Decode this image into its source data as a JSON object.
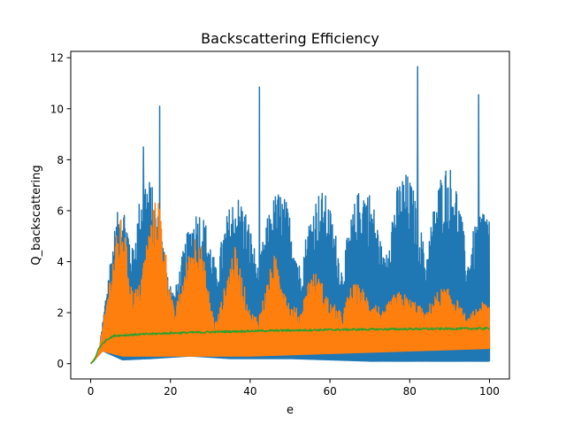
{
  "chart_data": {
    "type": "line",
    "title": "Backscattering Efficiency",
    "xlabel": "e",
    "ylabel": "Q_backscattering",
    "xlim": [
      -5,
      105
    ],
    "ylim": [
      -0.6,
      12.25
    ],
    "xticks": [
      0,
      20,
      40,
      60,
      80,
      100
    ],
    "yticks": [
      0,
      2,
      4,
      6,
      8,
      10,
      12
    ],
    "grid": false,
    "legend": "none",
    "series": [
      {
        "color": "#1f77b4",
        "generator": {
          "x_start": 0,
          "x_end": 100,
          "n": 1400,
          "peak_period": 10.5,
          "envelope": [
            [
              0,
              0
            ],
            [
              2,
              0.4
            ],
            [
              4,
              3.2
            ],
            [
              8,
              7.6
            ],
            [
              13,
              8.5
            ],
            [
              17,
              6.0
            ],
            [
              20,
              4.6
            ],
            [
              27,
              6.2
            ],
            [
              33,
              6.7
            ],
            [
              38,
              6.6
            ],
            [
              45,
              6.8
            ],
            [
              55,
              6.8
            ],
            [
              65,
              6.8
            ],
            [
              73,
              7.4
            ],
            [
              85,
              7.6
            ],
            [
              92,
              8.0
            ],
            [
              100,
              6.0
            ]
          ],
          "base": [
            [
              0,
              0
            ],
            [
              3,
              0.5
            ],
            [
              8,
              0.15
            ],
            [
              15,
              0.2
            ],
            [
              25,
              0.3
            ],
            [
              35,
              0.2
            ],
            [
              50,
              0.2
            ],
            [
              70,
              0.1
            ],
            [
              100,
              0.1
            ]
          ],
          "spikes": [
            {
              "x": 13.2,
              "y": 8.5
            },
            {
              "x": 17.3,
              "y": 10.1
            },
            {
              "x": 42.3,
              "y": 10.85
            },
            {
              "x": 82.0,
              "y": 11.65
            },
            {
              "x": 97.3,
              "y": 10.55
            }
          ]
        }
      },
      {
        "color": "#ff7f0e",
        "generator": {
          "x_start": 0,
          "x_end": 100,
          "n": 1400,
          "peak_period": 10.5,
          "envelope": [
            [
              0,
              0
            ],
            [
              2,
              0.5
            ],
            [
              4,
              2.6
            ],
            [
              8,
              6.8
            ],
            [
              12,
              3.9
            ],
            [
              17,
              6.9
            ],
            [
              21,
              3.4
            ],
            [
              27,
              5.4
            ],
            [
              31,
              2.6
            ],
            [
              36,
              4.7
            ],
            [
              40,
              2.4
            ],
            [
              46,
              4.4
            ],
            [
              50,
              2.6
            ],
            [
              55,
              4.1
            ],
            [
              60,
              2.6
            ],
            [
              65,
              3.6
            ],
            [
              70,
              2.6
            ],
            [
              74,
              3.3
            ],
            [
              80,
              2.6
            ],
            [
              85,
              3.2
            ],
            [
              92,
              2.8
            ],
            [
              100,
              2.4
            ]
          ],
          "base": [
            [
              0,
              0
            ],
            [
              3,
              0.5
            ],
            [
              8,
              0.3
            ],
            [
              20,
              0.3
            ],
            [
              40,
              0.3
            ],
            [
              60,
              0.4
            ],
            [
              80,
              0.5
            ],
            [
              100,
              0.6
            ]
          ]
        }
      },
      {
        "color": "#2ca02c",
        "generator": {
          "x_start": 0,
          "x_end": 100,
          "n": 700,
          "trend": [
            [
              0,
              0
            ],
            [
              1,
              0.15
            ],
            [
              2,
              0.6
            ],
            [
              4,
              0.95
            ],
            [
              6,
              1.1
            ],
            [
              10,
              1.13
            ],
            [
              20,
              1.2
            ],
            [
              40,
              1.28
            ],
            [
              60,
              1.33
            ],
            [
              80,
              1.36
            ],
            [
              100,
              1.38
            ]
          ],
          "noise": 0.04
        }
      }
    ]
  }
}
